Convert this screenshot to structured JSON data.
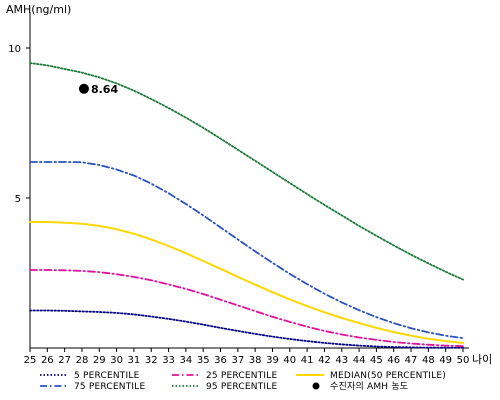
{
  "chart_data": {
    "type": "line",
    "ylabel": "AMH(ng/ml)",
    "xlabel": "나이",
    "x": [
      25,
      26,
      27,
      28,
      29,
      30,
      31,
      32,
      33,
      34,
      35,
      36,
      37,
      38,
      39,
      40,
      41,
      42,
      43,
      44,
      45,
      46,
      47,
      48,
      49,
      50
    ],
    "xlim": [
      25,
      50
    ],
    "ylim": [
      0,
      11
    ],
    "y_ticks": [
      5,
      10
    ],
    "grid": false,
    "legend_position": "bottom",
    "series": [
      {
        "name": "5 PERCENTILE",
        "color": "#000080",
        "style": "dotted",
        "values": [
          1.25,
          1.25,
          1.24,
          1.22,
          1.2,
          1.17,
          1.12,
          1.05,
          0.97,
          0.88,
          0.78,
          0.67,
          0.57,
          0.47,
          0.38,
          0.3,
          0.23,
          0.17,
          0.12,
          0.08,
          0.05,
          0.03,
          0.02,
          0.01,
          0.01,
          0.01
        ]
      },
      {
        "name": "25 PERCENTILE",
        "color": "#e0119a",
        "style": "dashdot",
        "values": [
          2.6,
          2.6,
          2.59,
          2.57,
          2.53,
          2.46,
          2.37,
          2.26,
          2.12,
          1.97,
          1.8,
          1.61,
          1.42,
          1.23,
          1.04,
          0.87,
          0.71,
          0.57,
          0.45,
          0.35,
          0.27,
          0.2,
          0.15,
          0.11,
          0.08,
          0.06
        ]
      },
      {
        "name": "MEDIAN(50 PERCENTILE)",
        "color": "#ffd700",
        "style": "solid",
        "values": [
          4.2,
          4.2,
          4.18,
          4.14,
          4.07,
          3.96,
          3.81,
          3.62,
          3.4,
          3.16,
          2.9,
          2.64,
          2.37,
          2.11,
          1.86,
          1.62,
          1.4,
          1.19,
          1.0,
          0.83,
          0.67,
          0.53,
          0.41,
          0.31,
          0.23,
          0.17
        ]
      },
      {
        "name": "75 PERCENTILE",
        "color": "#2a52be",
        "style": "dashdot",
        "values": [
          6.2,
          6.2,
          6.2,
          6.19,
          6.1,
          5.95,
          5.75,
          5.48,
          5.16,
          4.8,
          4.42,
          4.02,
          3.62,
          3.22,
          2.84,
          2.47,
          2.13,
          1.81,
          1.52,
          1.26,
          1.03,
          0.83,
          0.66,
          0.52,
          0.41,
          0.33
        ]
      },
      {
        "name": "95 PERCENTILE",
        "color": "#1a7a3a",
        "style": "dotted",
        "values": [
          9.5,
          9.42,
          9.3,
          9.18,
          9.02,
          8.82,
          8.58,
          8.3,
          8.0,
          7.68,
          7.34,
          6.98,
          6.61,
          6.24,
          5.87,
          5.5,
          5.13,
          4.77,
          4.42,
          4.07,
          3.74,
          3.42,
          3.11,
          2.82,
          2.54,
          2.28
        ]
      }
    ],
    "marker": {
      "label": "수진자의 AMH 농도",
      "x": 28,
      "y": 8.64,
      "value_text": "8.64",
      "color": "#000000"
    },
    "legend": [
      {
        "label": "5 PERCENTILE",
        "series": "5 PERCENTILE"
      },
      {
        "label": "25 PERCENTILE",
        "series": "25 PERCENTILE"
      },
      {
        "label": "MEDIAN(50 PERCENTILE)",
        "series": "MEDIAN(50 PERCENTILE)"
      },
      {
        "label": "75 PERCENTILE",
        "series": "75 PERCENTILE"
      },
      {
        "label": "95 PERCENTILE",
        "series": "95 PERCENTILE"
      },
      {
        "label": "수진자의 AMH 농도",
        "series": "marker"
      }
    ]
  }
}
